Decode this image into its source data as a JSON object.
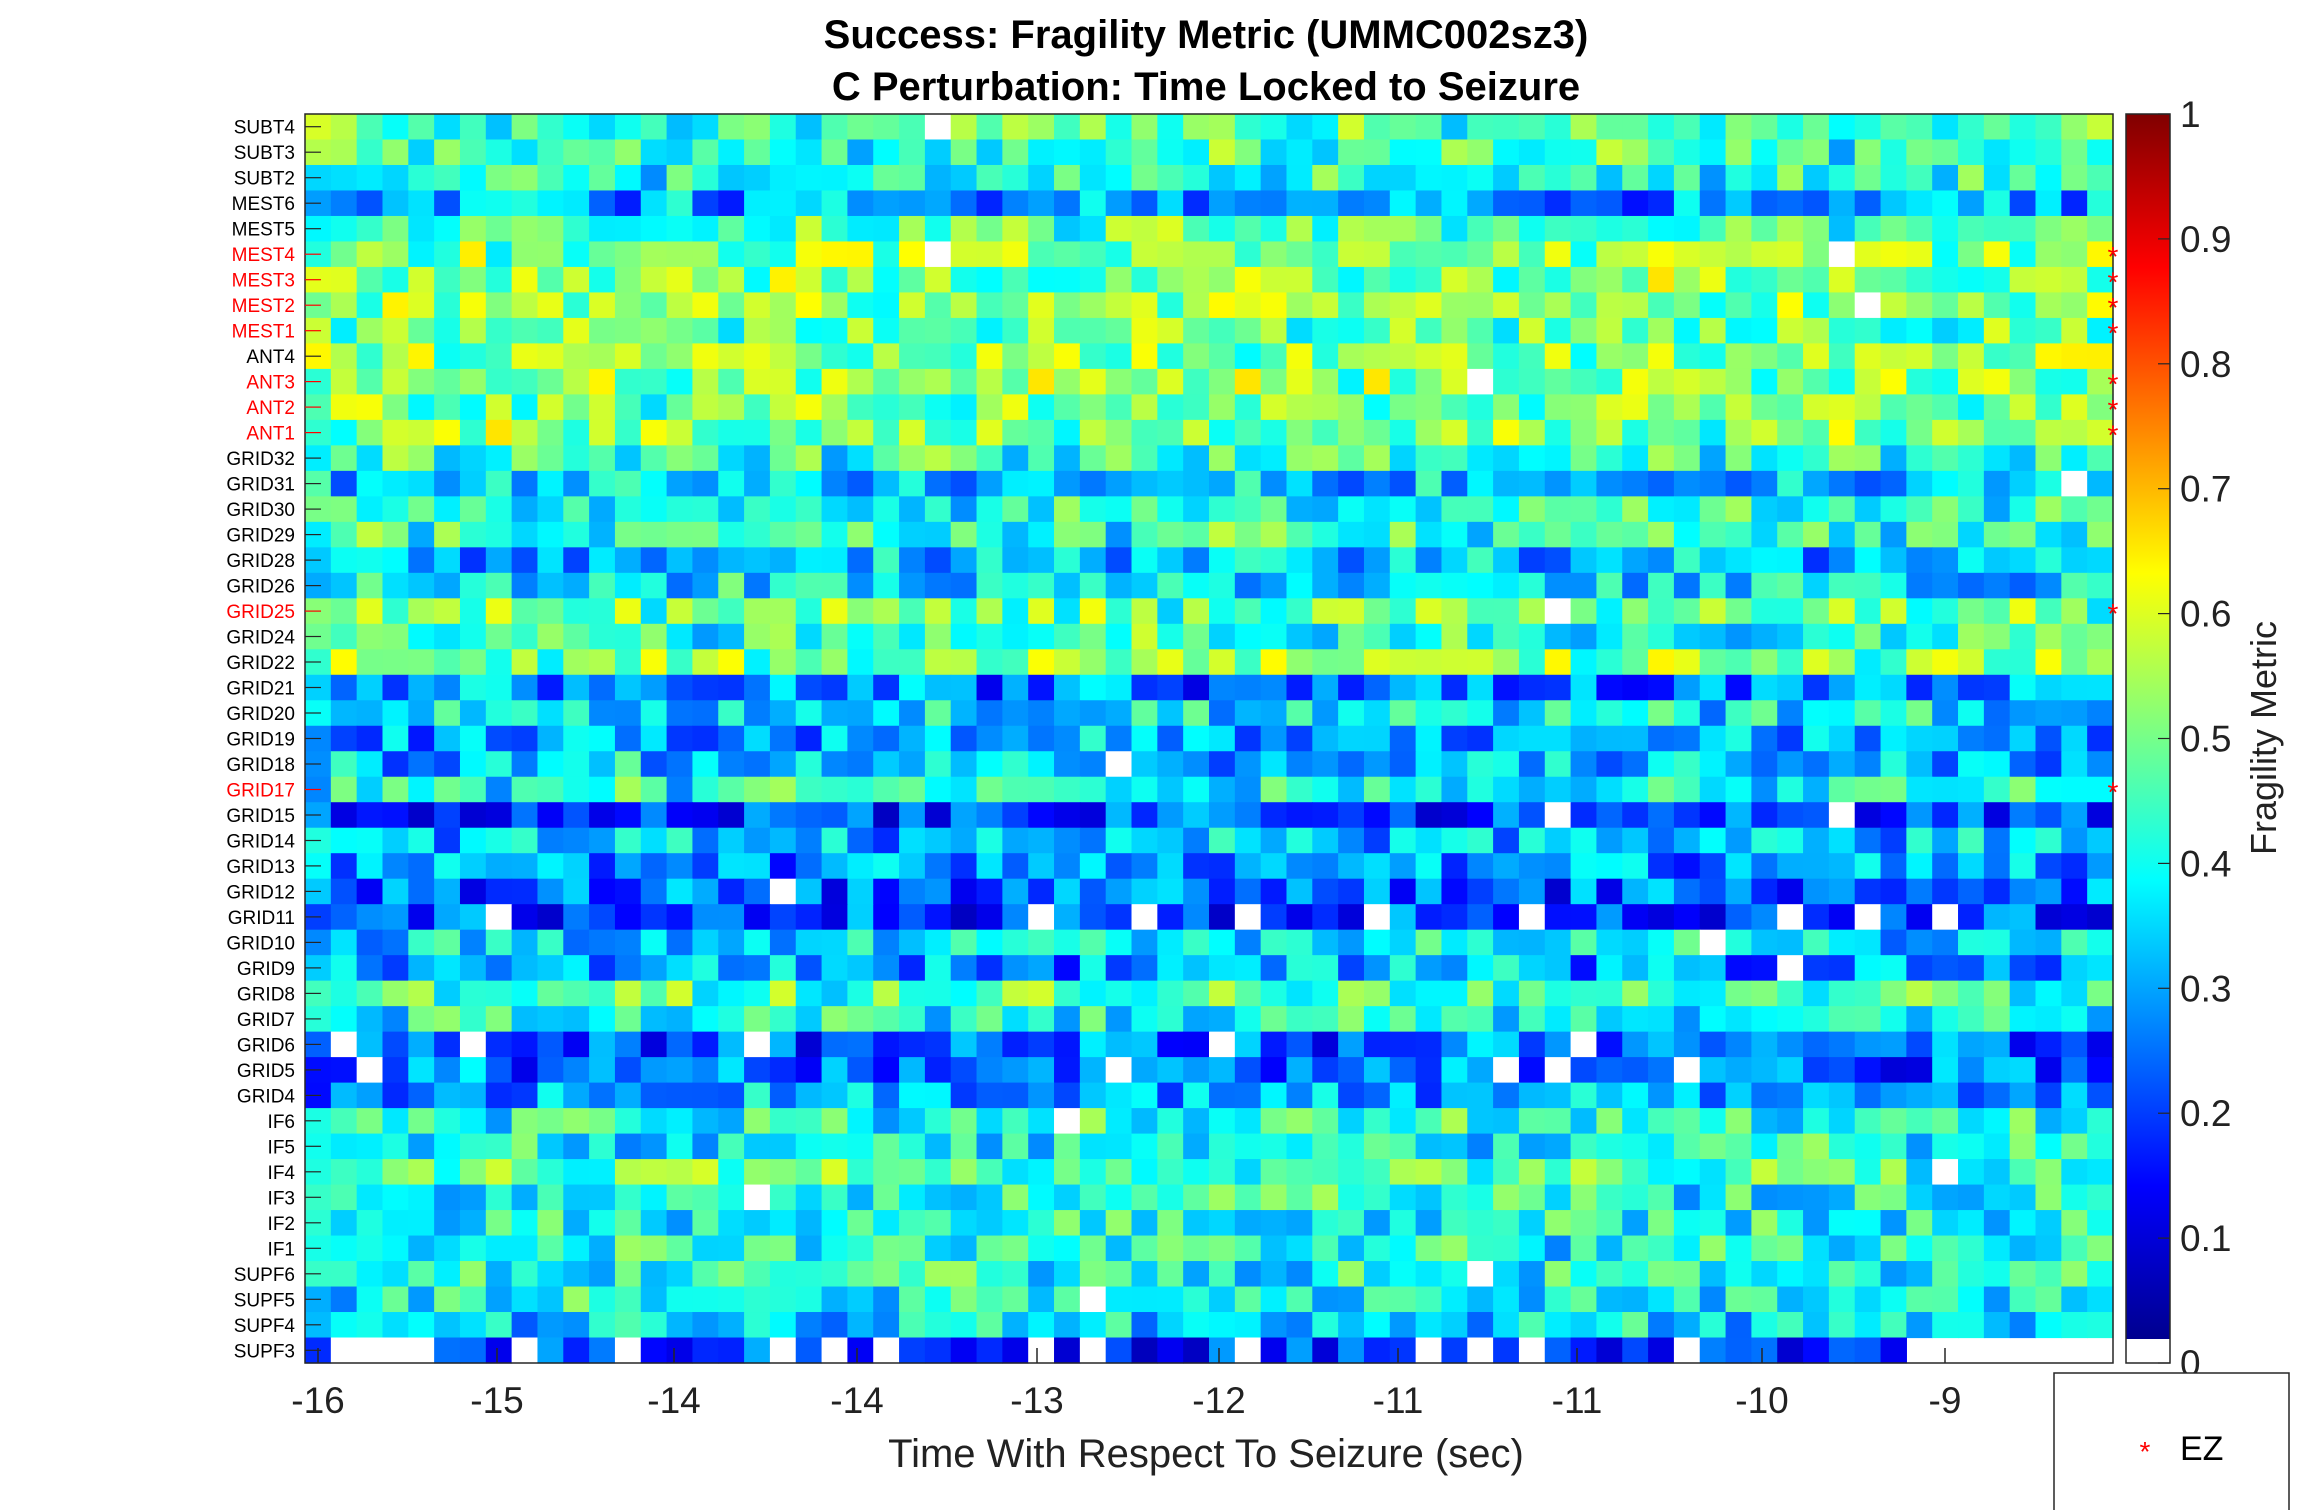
{
  "chart_data": {
    "type": "heatmap",
    "title": [
      "Success: Fragility Metric (UMMC002sz3)",
      "C Perturbation:  Time Locked to Seizure"
    ],
    "xlabel": "Time With Respect To Seizure (sec)",
    "x_tick_labels": [
      "-16",
      "-15",
      "-14",
      "-14",
      "-13",
      "-12",
      "-11",
      "-11",
      "-10",
      "-9"
    ],
    "xlim": [
      -16.1,
      -8.3
    ],
    "colorbar": {
      "label": "Fragility Metric",
      "range": [
        0,
        1
      ],
      "ticks": [
        "0",
        "0.1",
        "0.2",
        "0.3",
        "0.4",
        "0.5",
        "0.6",
        "0.7",
        "0.8",
        "0.9",
        "1"
      ],
      "colormap": "jet"
    },
    "channels": [
      "SUBT4",
      "SUBT3",
      "SUBT2",
      "MEST6",
      "MEST5",
      "MEST4",
      "MEST3",
      "MEST2",
      "MEST1",
      "ANT4",
      "ANT3",
      "ANT2",
      "ANT1",
      "GRID32",
      "GRID31",
      "GRID30",
      "GRID29",
      "GRID28",
      "GRID26",
      "GRID25",
      "GRID24",
      "GRID22",
      "GRID21",
      "GRID20",
      "GRID19",
      "GRID18",
      "GRID17",
      "GRID15",
      "GRID14",
      "GRID13",
      "GRID12",
      "GRID11",
      "GRID10",
      "GRID9",
      "GRID8",
      "GRID7",
      "GRID6",
      "GRID5",
      "GRID4",
      "IF6",
      "IF5",
      "IF4",
      "IF3",
      "IF2",
      "IF1",
      "SUPF6",
      "SUPF5",
      "SUPF4",
      "SUPF3"
    ],
    "ez_channels": [
      "MEST4",
      "MEST3",
      "MEST2",
      "MEST1",
      "ANT3",
      "ANT2",
      "ANT1",
      "GRID25",
      "GRID17"
    ],
    "ez_color": "#ff0000",
    "n_time_windows": 70,
    "channel_mean_fragility": [
      0.45,
      0.42,
      0.4,
      0.28,
      0.45,
      0.5,
      0.5,
      0.52,
      0.47,
      0.5,
      0.5,
      0.48,
      0.5,
      0.42,
      0.32,
      0.4,
      0.42,
      0.3,
      0.35,
      0.48,
      0.42,
      0.5,
      0.25,
      0.35,
      0.28,
      0.32,
      0.4,
      0.18,
      0.32,
      0.26,
      0.22,
      0.18,
      0.35,
      0.28,
      0.45,
      0.38,
      0.22,
      0.24,
      0.28,
      0.4,
      0.38,
      0.45,
      0.4,
      0.38,
      0.4,
      0.4,
      0.38,
      0.35,
      0.15
    ],
    "legend": {
      "entries": [
        {
          "marker": "*",
          "label": "EZ"
        }
      ],
      "location": "bottom-right outside"
    }
  }
}
